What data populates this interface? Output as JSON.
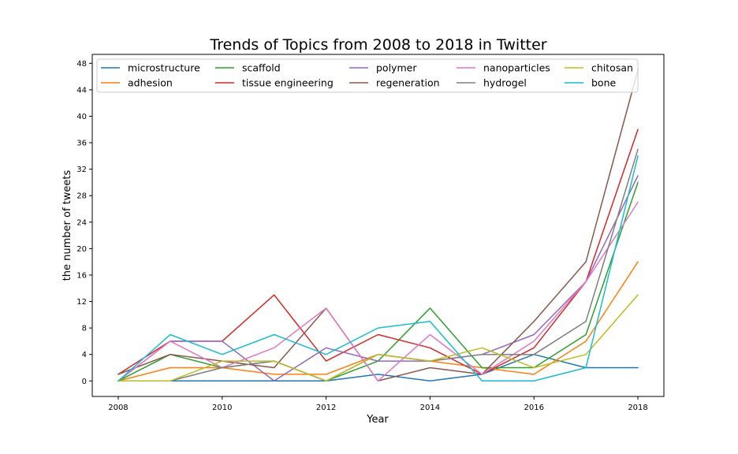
{
  "chart_data": {
    "type": "line",
    "title": "Trends of Topics from 2008 to 2018 in Twitter",
    "xlabel": "Year",
    "ylabel": "the number of tweets",
    "x": [
      2008,
      2009,
      2010,
      2011,
      2012,
      2013,
      2014,
      2015,
      2016,
      2017,
      2018
    ],
    "xticks": [
      2008,
      2010,
      2012,
      2014,
      2016,
      2018
    ],
    "yticks": [
      0,
      4,
      8,
      12,
      16,
      20,
      24,
      28,
      32,
      36,
      40,
      44,
      48
    ],
    "xlim": [
      2007.5,
      2018.5
    ],
    "ylim": [
      -2.35,
      49.35
    ],
    "grid": false,
    "legend_position": "top",
    "series": [
      {
        "name": "microstructure",
        "color": "#1f77b4",
        "values": [
          0,
          0,
          0,
          0,
          0,
          1,
          0,
          1,
          4,
          2,
          2
        ]
      },
      {
        "name": "adhesion",
        "color": "#ff7f0e",
        "values": [
          0,
          2,
          2,
          1,
          1,
          4,
          3,
          2,
          1,
          6,
          18
        ]
      },
      {
        "name": "scaffold",
        "color": "#2ca02c",
        "values": [
          0,
          4,
          2,
          3,
          0,
          3,
          11,
          2,
          2,
          7,
          30
        ]
      },
      {
        "name": "tissue engineering",
        "color": "#d62728",
        "values": [
          1,
          6,
          6,
          13,
          3,
          7,
          5,
          1,
          5,
          15,
          38
        ]
      },
      {
        "name": "polymer",
        "color": "#9467bd",
        "values": [
          0,
          6,
          6,
          0,
          5,
          3,
          3,
          4,
          7,
          15,
          31
        ]
      },
      {
        "name": "regeneration",
        "color": "#8c564b",
        "values": [
          1,
          4,
          3,
          2,
          11,
          0,
          2,
          1,
          9,
          18,
          47
        ]
      },
      {
        "name": "nanoparticles",
        "color": "#e377c2",
        "values": [
          0,
          6,
          2,
          5,
          11,
          0,
          7,
          1,
          6,
          15,
          27
        ]
      },
      {
        "name": "hydrogel",
        "color": "#7f7f7f",
        "values": [
          0,
          0,
          2,
          3,
          0,
          4,
          3,
          4,
          4,
          9,
          35
        ]
      },
      {
        "name": "chitosan",
        "color": "#bcbd22",
        "values": [
          0,
          0,
          3,
          3,
          0,
          4,
          3,
          5,
          2,
          4,
          13
        ]
      },
      {
        "name": "bone",
        "color": "#17becf",
        "values": [
          0,
          7,
          4,
          7,
          4,
          8,
          9,
          0,
          0,
          2,
          34
        ]
      }
    ]
  }
}
